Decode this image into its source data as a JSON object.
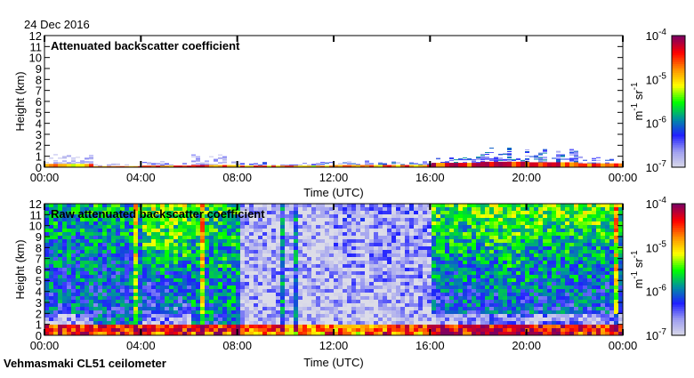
{
  "date_label": "24 Dec 2016",
  "footer_label": "Vehmasmaki CL51 ceilometer",
  "chart_data": [
    {
      "type": "heatmap",
      "title": "Attenuated backscatter coefficient",
      "xlabel": "Time (UTC)",
      "ylabel": "Height (km)",
      "xlim_hours": [
        0,
        24
      ],
      "ylim": [
        0,
        12
      ],
      "x_ticks": [
        "00:00",
        "04:00",
        "08:00",
        "12:00",
        "16:00",
        "20:00",
        "00:00"
      ],
      "y_ticks": [
        "0",
        "1",
        "2",
        "3",
        "4",
        "5",
        "6",
        "7",
        "8",
        "9",
        "10",
        "11",
        "12"
      ],
      "colorbar": {
        "label": "m-1 sr-1",
        "ticks": [
          "10-7",
          "10-6",
          "10-5",
          "10-4"
        ],
        "range_log10": [
          -7,
          -4
        ]
      },
      "column_hours": [
        0,
        2,
        4,
        6,
        8,
        10,
        12,
        14,
        16,
        18,
        20,
        22
      ],
      "surface_layer_top_km": [
        0.3,
        0.1,
        0.15,
        0.2,
        0.15,
        0.15,
        0.2,
        0.2,
        0.4,
        0.5,
        0.45,
        0.35
      ],
      "surface_layer_level": [
        0.7,
        0.75,
        0.8,
        0.8,
        0.75,
        0.7,
        0.7,
        0.75,
        0.85,
        0.9,
        0.85,
        0.8
      ],
      "aerosol_top_km": [
        1.2,
        0.3,
        0.4,
        1.0,
        0.4,
        0.4,
        0.5,
        0.5,
        0.9,
        1.5,
        1.4,
        0.9
      ],
      "aerosol_level": [
        0.12,
        0.1,
        0.2,
        0.15,
        0.25,
        0.25,
        0.3,
        0.3,
        0.3,
        0.3,
        0.3,
        0.25
      ]
    },
    {
      "type": "heatmap",
      "title": "Raw attenuated backscatter coefficient",
      "xlabel": "Time (UTC)",
      "ylabel": "Height (km)",
      "xlim_hours": [
        0,
        24
      ],
      "ylim": [
        0,
        12
      ],
      "x_ticks": [
        "00:00",
        "04:00",
        "08:00",
        "12:00",
        "16:00",
        "20:00",
        "00:00"
      ],
      "y_ticks": [
        "0",
        "1",
        "2",
        "3",
        "4",
        "5",
        "6",
        "7",
        "8",
        "9",
        "10",
        "11",
        "12"
      ],
      "colorbar": {
        "label": "m-1 sr-1",
        "ticks": [
          "10-7",
          "10-6",
          "10-5",
          "10-4"
        ],
        "range_log10": [
          -7,
          -4
        ]
      },
      "column_hours": [
        0,
        2,
        4,
        6,
        8,
        10,
        12,
        14,
        16,
        18,
        20,
        22
      ],
      "grid_rows_km_bottom_to_top": "0-1 .. 11-12",
      "level_grid": [
        [
          0.85,
          0.85,
          0.85,
          0.85,
          0.8,
          0.75,
          0.75,
          0.8,
          0.9,
          0.9,
          0.9,
          0.85
        ],
        [
          0.1,
          0.3,
          0.1,
          0.3,
          0.05,
          0.05,
          0.05,
          0.05,
          0.1,
          0.15,
          0.15,
          0.1
        ],
        [
          0.3,
          0.3,
          0.25,
          0.35,
          0.08,
          0.05,
          0.05,
          0.08,
          0.3,
          0.3,
          0.3,
          0.3
        ],
        [
          0.3,
          0.3,
          0.3,
          0.35,
          0.08,
          0.05,
          0.06,
          0.08,
          0.3,
          0.3,
          0.3,
          0.3
        ],
        [
          0.3,
          0.3,
          0.3,
          0.35,
          0.08,
          0.06,
          0.08,
          0.08,
          0.32,
          0.33,
          0.32,
          0.32
        ],
        [
          0.32,
          0.32,
          0.35,
          0.38,
          0.08,
          0.06,
          0.08,
          0.1,
          0.35,
          0.38,
          0.35,
          0.35
        ],
        [
          0.32,
          0.32,
          0.4,
          0.4,
          0.08,
          0.06,
          0.08,
          0.1,
          0.38,
          0.4,
          0.38,
          0.38
        ],
        [
          0.35,
          0.35,
          0.45,
          0.4,
          0.08,
          0.06,
          0.1,
          0.1,
          0.4,
          0.42,
          0.4,
          0.4
        ],
        [
          0.35,
          0.35,
          0.48,
          0.42,
          0.08,
          0.06,
          0.1,
          0.1,
          0.42,
          0.45,
          0.42,
          0.42
        ],
        [
          0.38,
          0.38,
          0.5,
          0.45,
          0.08,
          0.06,
          0.1,
          0.12,
          0.45,
          0.48,
          0.45,
          0.45
        ],
        [
          0.4,
          0.4,
          0.52,
          0.45,
          0.08,
          0.06,
          0.12,
          0.12,
          0.48,
          0.5,
          0.5,
          0.5
        ],
        [
          0.42,
          0.42,
          0.55,
          0.48,
          0.08,
          0.06,
          0.12,
          0.12,
          0.5,
          0.52,
          0.52,
          0.52
        ]
      ]
    }
  ],
  "colors": {
    "colormap": [
      "#dcdce8",
      "#a0a0f0",
      "#2020ff",
      "#0090a0",
      "#00ff00",
      "#ffff00",
      "#ff9000",
      "#ff0000",
      "#800060"
    ]
  }
}
